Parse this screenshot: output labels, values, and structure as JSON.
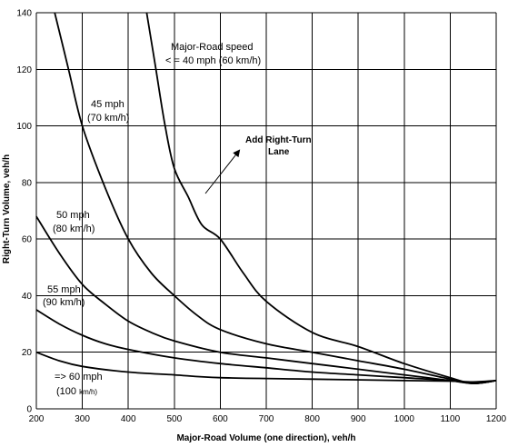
{
  "chart_data": {
    "type": "line",
    "xlabel": "Major-Road Volume (one direction), veh/h",
    "ylabel": "Right-Turn Volume, veh/h",
    "xlim": [
      200,
      1200
    ],
    "ylim": [
      0,
      140
    ],
    "xticks": [
      "200",
      "300",
      "400",
      "500",
      "600",
      "700",
      "800",
      "900",
      "1000",
      "1100",
      "1200"
    ],
    "yticks": [
      "0",
      "20",
      "40",
      "60",
      "80",
      "100",
      "120",
      "140"
    ],
    "grid": true,
    "series": [
      {
        "name": "Major-Road speed < = 40 mph (60 km/h)",
        "points": [
          [
            440,
            140
          ],
          [
            460,
            120
          ],
          [
            480,
            100
          ],
          [
            500,
            85
          ],
          [
            530,
            75
          ],
          [
            560,
            65
          ],
          [
            600,
            60
          ],
          [
            650,
            48
          ],
          [
            700,
            38
          ],
          [
            800,
            27
          ],
          [
            900,
            22
          ],
          [
            1000,
            16
          ],
          [
            1100,
            11
          ],
          [
            1150,
            9
          ],
          [
            1200,
            10
          ]
        ]
      },
      {
        "name": "45 mph (70 km/h)",
        "points": [
          [
            240,
            140
          ],
          [
            270,
            120
          ],
          [
            300,
            100
          ],
          [
            350,
            78
          ],
          [
            400,
            60
          ],
          [
            450,
            48
          ],
          [
            500,
            40
          ],
          [
            550,
            33
          ],
          [
            600,
            28
          ],
          [
            700,
            23
          ],
          [
            800,
            20
          ],
          [
            900,
            17
          ],
          [
            1000,
            14
          ],
          [
            1100,
            10.5
          ],
          [
            1150,
            9
          ],
          [
            1200,
            10
          ]
        ]
      },
      {
        "name": "50 mph (80 km/h)",
        "points": [
          [
            200,
            68
          ],
          [
            250,
            55
          ],
          [
            300,
            44
          ],
          [
            350,
            37
          ],
          [
            400,
            31
          ],
          [
            450,
            27
          ],
          [
            500,
            24
          ],
          [
            600,
            20
          ],
          [
            700,
            18
          ],
          [
            800,
            16
          ],
          [
            900,
            14
          ],
          [
            1000,
            12
          ],
          [
            1100,
            10
          ],
          [
            1150,
            9
          ],
          [
            1200,
            10
          ]
        ]
      },
      {
        "name": "55 mph (90 km/h)",
        "points": [
          [
            200,
            35
          ],
          [
            250,
            30
          ],
          [
            300,
            26
          ],
          [
            350,
            23
          ],
          [
            400,
            21
          ],
          [
            500,
            18
          ],
          [
            600,
            16
          ],
          [
            700,
            14.5
          ],
          [
            800,
            13
          ],
          [
            900,
            12
          ],
          [
            1000,
            11
          ],
          [
            1100,
            10
          ],
          [
            1150,
            9
          ],
          [
            1200,
            10
          ]
        ]
      },
      {
        "name": "=> 60 mph (100 km/h)",
        "points": [
          [
            200,
            20
          ],
          [
            250,
            17
          ],
          [
            300,
            15
          ],
          [
            400,
            13
          ],
          [
            500,
            12
          ],
          [
            600,
            11
          ],
          [
            800,
            10.5
          ],
          [
            1000,
            10
          ],
          [
            1100,
            9.8
          ],
          [
            1150,
            9.5
          ],
          [
            1200,
            10
          ]
        ]
      }
    ],
    "annotations": {
      "speed_header_line1": "Major-Road speed",
      "speed_header_line2": "< = 40 mph (60 km/h)",
      "s45_line1": "45 mph",
      "s45_line2": "(70 km/h)",
      "s50_line1": "50 mph",
      "s50_line2": "(80 km/h)",
      "s55_line1": "55 mph",
      "s55_line2": "(90 km/h)",
      "s60_line1": "=> 60 mph",
      "s60_line2_main": "(100 ",
      "s60_line2_small": "km/h)",
      "region_line1": "Add Right-Turn",
      "region_line2": "Lane"
    }
  }
}
